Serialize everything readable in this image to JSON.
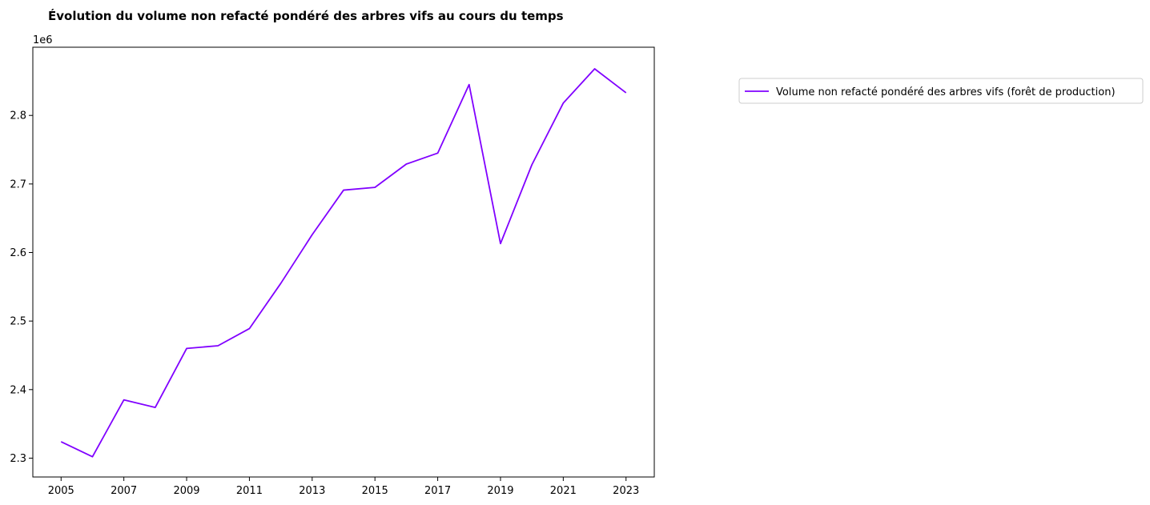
{
  "chart_data": {
    "type": "line",
    "title": "Évolution du volume non refacté pondéré des arbres vifs au cours du temps",
    "xlabel": "",
    "ylabel": "",
    "y_offset_label": "1e6",
    "x_ticks": [
      2005,
      2007,
      2009,
      2011,
      2013,
      2015,
      2017,
      2019,
      2021,
      2023
    ],
    "x_tick_labels": [
      "2005",
      "2007",
      "2009",
      "2011",
      "2013",
      "2015",
      "2017",
      "2019",
      "2021",
      "2023"
    ],
    "y_ticks": [
      2.3,
      2.4,
      2.5,
      2.6,
      2.7,
      2.8
    ],
    "y_tick_labels": [
      "2.3",
      "2.4",
      "2.5",
      "2.6",
      "2.7",
      "2.8"
    ],
    "xlim": [
      2004.1,
      2023.9
    ],
    "ylim": [
      2.2725,
      2.8995
    ],
    "grid": false,
    "legend_position": "outside-right",
    "x": [
      2005,
      2006,
      2007,
      2008,
      2009,
      2010,
      2011,
      2012,
      2013,
      2014,
      2015,
      2016,
      2017,
      2018,
      2019,
      2020,
      2021,
      2022,
      2023
    ],
    "series": [
      {
        "name": "Volume non refacté pondéré des arbres vifs (forêt de production)",
        "color": "#8000ff",
        "values": [
          2.324,
          2.302,
          2.385,
          2.374,
          2.46,
          2.464,
          2.489,
          2.555,
          2.626,
          2.691,
          2.695,
          2.729,
          2.745,
          2.845,
          2.613,
          2.728,
          2.818,
          2.868,
          2.833
        ]
      }
    ]
  }
}
